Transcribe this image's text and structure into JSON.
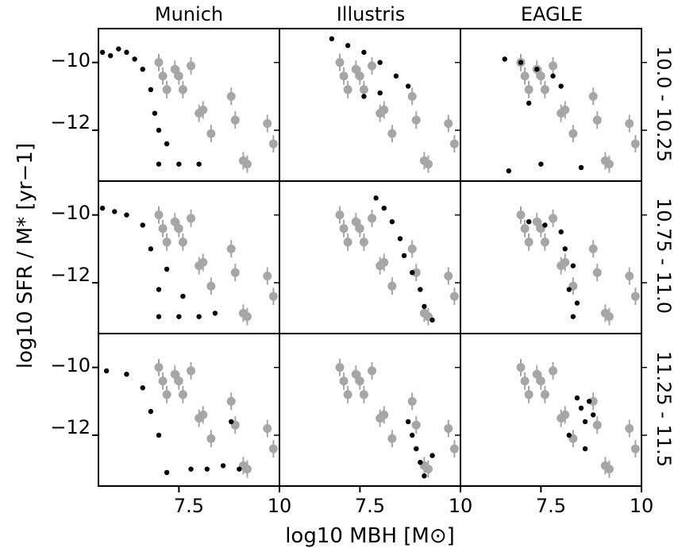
{
  "figure": {
    "xlabel": "log10 MBH [M⊙]",
    "ylabel": "log10 SFR / M* [yr−1]",
    "column_titles": [
      "Munich",
      "Illustris",
      "EAGLE"
    ],
    "row_labels": [
      "10.0 - 10.25",
      "10.75 - 11.0",
      "11.25 - 11.5"
    ]
  },
  "chart_data": {
    "type": "scatter",
    "layout": "3x3 grid, shared axes",
    "xlim": [
      5.5,
      10.0
    ],
    "ylim": [
      -13.5,
      -9.0
    ],
    "xticks": [
      7.5,
      10.0
    ],
    "yticks": [
      -10,
      -12
    ],
    "colors": {
      "simulation": "#000000",
      "observed": "#a6a6a6"
    },
    "observed_points": [
      {
        "x": 7.0,
        "y": -10.0
      },
      {
        "x": 7.1,
        "y": -10.4
      },
      {
        "x": 7.2,
        "y": -10.8
      },
      {
        "x": 7.4,
        "y": -10.2
      },
      {
        "x": 7.5,
        "y": -10.4
      },
      {
        "x": 7.6,
        "y": -10.8
      },
      {
        "x": 7.8,
        "y": -10.1
      },
      {
        "x": 8.0,
        "y": -11.5
      },
      {
        "x": 8.1,
        "y": -11.4
      },
      {
        "x": 8.3,
        "y": -12.1
      },
      {
        "x": 8.8,
        "y": -11.0
      },
      {
        "x": 8.9,
        "y": -11.7
      },
      {
        "x": 9.1,
        "y": -12.9
      },
      {
        "x": 9.2,
        "y": -13.0
      },
      {
        "x": 9.7,
        "y": -11.8
      },
      {
        "x": 9.85,
        "y": -12.4
      }
    ],
    "panels": [
      {
        "model": "Munich",
        "mass_bin": "10.0 - 10.25",
        "points": [
          {
            "x": 5.6,
            "y": -9.7
          },
          {
            "x": 5.8,
            "y": -9.8
          },
          {
            "x": 6.0,
            "y": -9.6
          },
          {
            "x": 6.2,
            "y": -9.7
          },
          {
            "x": 6.4,
            "y": -9.9
          },
          {
            "x": 6.6,
            "y": -10.2
          },
          {
            "x": 6.8,
            "y": -10.8
          },
          {
            "x": 6.9,
            "y": -11.5
          },
          {
            "x": 7.0,
            "y": -12.0
          },
          {
            "x": 7.2,
            "y": -12.4
          },
          {
            "x": 7.0,
            "y": -13.0
          },
          {
            "x": 7.5,
            "y": -13.0
          },
          {
            "x": 8.0,
            "y": -13.0
          }
        ]
      },
      {
        "model": "Illustris",
        "mass_bin": "10.0 - 10.25",
        "points": [
          {
            "x": 6.8,
            "y": -9.3
          },
          {
            "x": 7.2,
            "y": -9.5
          },
          {
            "x": 7.6,
            "y": -9.7
          },
          {
            "x": 8.0,
            "y": -10.0
          },
          {
            "x": 8.4,
            "y": -10.4
          },
          {
            "x": 8.7,
            "y": -10.7
          },
          {
            "x": 8.0,
            "y": -10.9
          },
          {
            "x": 7.6,
            "y": -11.0
          }
        ]
      },
      {
        "model": "EAGLE",
        "mass_bin": "10.0 - 10.25",
        "points": [
          {
            "x": 6.6,
            "y": -9.9
          },
          {
            "x": 7.0,
            "y": -10.0
          },
          {
            "x": 7.4,
            "y": -10.2
          },
          {
            "x": 7.8,
            "y": -10.4
          },
          {
            "x": 8.0,
            "y": -10.7
          },
          {
            "x": 7.2,
            "y": -11.2
          },
          {
            "x": 7.5,
            "y": -13.0
          },
          {
            "x": 8.5,
            "y": -13.1
          },
          {
            "x": 6.7,
            "y": -13.2
          }
        ]
      },
      {
        "model": "Munich",
        "mass_bin": "10.75 - 11.0",
        "points": [
          {
            "x": 5.6,
            "y": -9.8
          },
          {
            "x": 5.9,
            "y": -9.9
          },
          {
            "x": 6.2,
            "y": -10.0
          },
          {
            "x": 6.6,
            "y": -10.3
          },
          {
            "x": 6.8,
            "y": -11.0
          },
          {
            "x": 7.2,
            "y": -11.6
          },
          {
            "x": 7.0,
            "y": -12.2
          },
          {
            "x": 7.6,
            "y": -12.4
          },
          {
            "x": 7.0,
            "y": -13.0
          },
          {
            "x": 7.5,
            "y": -13.0
          },
          {
            "x": 8.0,
            "y": -13.0
          },
          {
            "x": 8.4,
            "y": -12.9
          }
        ]
      },
      {
        "model": "Illustris",
        "mass_bin": "10.75 - 11.0",
        "points": [
          {
            "x": 7.9,
            "y": -9.5
          },
          {
            "x": 8.1,
            "y": -9.8
          },
          {
            "x": 8.3,
            "y": -10.2
          },
          {
            "x": 8.5,
            "y": -10.7
          },
          {
            "x": 8.6,
            "y": -11.2
          },
          {
            "x": 8.8,
            "y": -11.7
          },
          {
            "x": 9.0,
            "y": -12.2
          },
          {
            "x": 9.1,
            "y": -12.7
          },
          {
            "x": 9.3,
            "y": -13.1
          }
        ]
      },
      {
        "model": "EAGLE",
        "mass_bin": "10.75 - 11.0",
        "points": [
          {
            "x": 7.2,
            "y": -10.2
          },
          {
            "x": 7.6,
            "y": -10.3
          },
          {
            "x": 8.0,
            "y": -10.5
          },
          {
            "x": 8.1,
            "y": -11.0
          },
          {
            "x": 8.3,
            "y": -11.5
          },
          {
            "x": 8.2,
            "y": -12.2
          },
          {
            "x": 8.4,
            "y": -12.6
          },
          {
            "x": 8.3,
            "y": -13.0
          }
        ]
      },
      {
        "model": "Munich",
        "mass_bin": "11.25 - 11.5",
        "points": [
          {
            "x": 5.7,
            "y": -10.1
          },
          {
            "x": 6.2,
            "y": -10.2
          },
          {
            "x": 6.6,
            "y": -10.6
          },
          {
            "x": 6.8,
            "y": -11.3
          },
          {
            "x": 7.0,
            "y": -12.0
          },
          {
            "x": 7.8,
            "y": -13.0
          },
          {
            "x": 8.2,
            "y": -13.0
          },
          {
            "x": 8.6,
            "y": -12.9
          },
          {
            "x": 9.0,
            "y": -13.0
          },
          {
            "x": 8.8,
            "y": -11.6
          },
          {
            "x": 7.2,
            "y": -13.1
          }
        ]
      },
      {
        "model": "Illustris",
        "mass_bin": "11.25 - 11.5",
        "points": [
          {
            "x": 8.7,
            "y": -11.6
          },
          {
            "x": 8.8,
            "y": -12.0
          },
          {
            "x": 8.9,
            "y": -12.4
          },
          {
            "x": 9.0,
            "y": -12.8
          },
          {
            "x": 9.1,
            "y": -13.2
          },
          {
            "x": 9.3,
            "y": -12.6
          }
        ]
      },
      {
        "model": "EAGLE",
        "mass_bin": "11.25 - 11.5",
        "points": [
          {
            "x": 8.4,
            "y": -10.9
          },
          {
            "x": 8.5,
            "y": -11.2
          },
          {
            "x": 8.7,
            "y": -11.0
          },
          {
            "x": 8.6,
            "y": -11.6
          },
          {
            "x": 8.8,
            "y": -11.4
          },
          {
            "x": 8.2,
            "y": -12.0
          },
          {
            "x": 8.6,
            "y": -12.4
          }
        ]
      }
    ]
  }
}
